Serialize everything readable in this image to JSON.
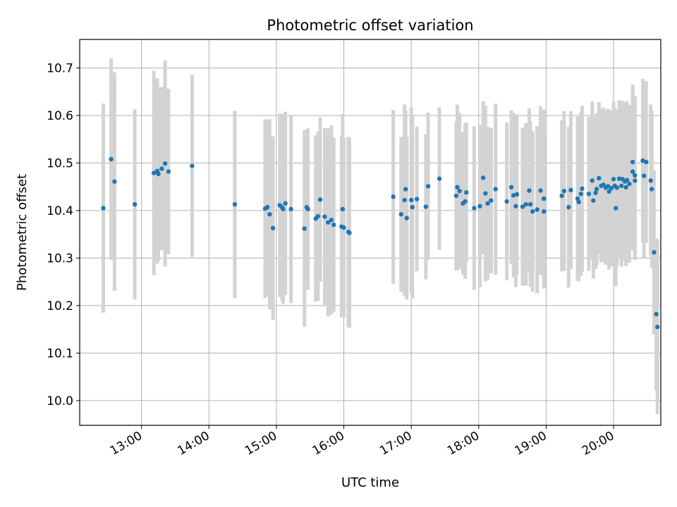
{
  "chart_data": {
    "type": "scatter",
    "title": "Photometric offset variation",
    "xlabel": "UTC time",
    "ylabel": "Photometric offset",
    "x_unit": "UTC hours",
    "xlim": [
      "12:05",
      "20:42"
    ],
    "ylim": [
      9.948,
      10.76
    ],
    "x_ticks": [
      "13:00",
      "14:00",
      "15:00",
      "16:00",
      "17:00",
      "18:00",
      "19:00",
      "20:00"
    ],
    "y_ticks": [
      10.0,
      10.1,
      10.2,
      10.3,
      10.4,
      10.5,
      10.6,
      10.7
    ],
    "grid": true,
    "colors": {
      "points": "#1f77b4",
      "errorbars": "#d3d3d3",
      "grid": "#b0b0b0"
    },
    "series": [
      {
        "points": [
          [
            "12:26",
            10.405,
            0.22
          ],
          [
            "12:33",
            10.508,
            0.212
          ],
          [
            "12:36",
            10.461,
            0.23
          ],
          [
            "12:54",
            10.413,
            0.2
          ],
          [
            "13:11",
            10.479,
            0.215
          ],
          [
            "13:14",
            10.483,
            0.195
          ],
          [
            "13:15",
            10.477,
            0.183
          ],
          [
            "13:18",
            10.488,
            0.172
          ],
          [
            "13:21",
            10.499,
            0.217
          ],
          [
            "13:24",
            10.482,
            0.174
          ],
          [
            "13:45",
            10.494,
            0.192
          ],
          [
            "14:23",
            10.413,
            0.197
          ],
          [
            "14:50",
            10.404,
            0.188
          ],
          [
            "14:52",
            10.407,
            0.185
          ],
          [
            "14:54",
            10.392,
            0.2
          ],
          [
            "14:57",
            10.363,
            0.193
          ],
          [
            "15:03",
            10.411,
            0.193
          ],
          [
            "15:05",
            10.407,
            0.196
          ],
          [
            "15:06",
            10.403,
            0.199
          ],
          [
            "15:08",
            10.415,
            0.193
          ],
          [
            "15:13",
            10.403,
            0.198
          ],
          [
            "15:25",
            10.362,
            0.207
          ],
          [
            "15:27",
            10.407,
            0.163
          ],
          [
            "15:28",
            10.403,
            0.17
          ],
          [
            "15:35",
            10.383,
            0.175
          ],
          [
            "15:37",
            10.388,
            0.178
          ],
          [
            "15:39",
            10.423,
            0.173
          ],
          [
            "15:43",
            10.387,
            0.187
          ],
          [
            "15:46",
            10.375,
            0.198
          ],
          [
            "15:49",
            10.38,
            0.199
          ],
          [
            "15:51",
            10.37,
            0.183
          ],
          [
            "15:58",
            10.366,
            0.191
          ],
          [
            "16:00",
            10.364,
            0.189
          ],
          [
            "15:59",
            10.403,
            0.2
          ],
          [
            "16:04",
            10.355,
            0.2
          ],
          [
            "16:05",
            10.353,
            0.2
          ],
          [
            "16:44",
            10.429,
            0.183
          ],
          [
            "16:51",
            10.392,
            0.163
          ],
          [
            "16:54",
            10.422,
            0.201
          ],
          [
            "16:55",
            10.445,
            0.165
          ],
          [
            "16:56",
            10.384,
            0.171
          ],
          [
            "17:00",
            10.422,
            0.195
          ],
          [
            "17:01",
            10.407,
            0.192
          ],
          [
            "17:05",
            10.424,
            0.152
          ],
          [
            "17:13",
            10.408,
            0.153
          ],
          [
            "17:15",
            10.451,
            0.155
          ],
          [
            "17:25",
            10.467,
            0.15
          ],
          [
            "17:40",
            10.431,
            0.157
          ],
          [
            "17:41",
            10.449,
            0.174
          ],
          [
            "17:43",
            10.441,
            0.164
          ],
          [
            "17:46",
            10.415,
            0.15
          ],
          [
            "17:48",
            10.419,
            0.163
          ],
          [
            "17:49",
            10.438,
            0.147
          ],
          [
            "17:56",
            10.405,
            0.172
          ],
          [
            "18:01",
            10.409,
            0.171
          ],
          [
            "18:04",
            10.469,
            0.161
          ],
          [
            "18:06",
            10.436,
            0.185
          ],
          [
            "18:08",
            10.415,
            0.161
          ],
          [
            "18:11",
            10.421,
            0.153
          ],
          [
            "18:15",
            10.445,
            0.18
          ],
          [
            "18:25",
            10.419,
            0.166
          ],
          [
            "18:29",
            10.449,
            0.162
          ],
          [
            "18:31",
            10.432,
            0.173
          ],
          [
            "18:33",
            10.409,
            0.17
          ],
          [
            "18:34",
            10.434,
            0.168
          ],
          [
            "18:39",
            10.408,
            0.166
          ],
          [
            "18:42",
            10.413,
            0.171
          ],
          [
            "18:46",
            10.413,
            0.174
          ],
          [
            "18:45",
            10.442,
            0.173
          ],
          [
            "18:48",
            10.398,
            0.169
          ],
          [
            "18:52",
            10.402,
            0.176
          ],
          [
            "18:55",
            10.442,
            0.177
          ],
          [
            "18:58",
            10.425,
            0.187
          ],
          [
            "18:58",
            10.398,
            0.162
          ],
          [
            "19:14",
            10.431,
            0.159
          ],
          [
            "19:16",
            10.441,
            0.168
          ],
          [
            "19:20",
            10.407,
            0.169
          ],
          [
            "19:22",
            10.443,
            0.166
          ],
          [
            "19:28",
            10.425,
            0.173
          ],
          [
            "19:29",
            10.418,
            0.167
          ],
          [
            "19:31",
            10.435,
            0.173
          ],
          [
            "19:32",
            10.446,
            0.174
          ],
          [
            "19:38",
            10.435,
            0.162
          ],
          [
            "19:41",
            10.463,
            0.166
          ],
          [
            "19:42",
            10.421,
            0.164
          ],
          [
            "19:44",
            10.437,
            0.16
          ],
          [
            "19:45",
            10.445,
            0.16
          ],
          [
            "19:47",
            10.468,
            0.16
          ],
          [
            "19:49",
            10.452,
            0.161
          ],
          [
            "19:51",
            10.454,
            0.162
          ],
          [
            "19:53",
            10.448,
            0.162
          ],
          [
            "19:55",
            10.451,
            0.163
          ],
          [
            "19:56",
            10.44,
            0.164
          ],
          [
            "19:58",
            10.447,
            0.164
          ],
          [
            "20:00",
            10.466,
            0.163
          ],
          [
            "20:01",
            10.452,
            0.164
          ],
          [
            "20:02",
            10.405,
            0.164
          ],
          [
            "20:03",
            10.448,
            0.164
          ],
          [
            "20:05",
            10.467,
            0.165
          ],
          [
            "20:07",
            10.452,
            0.17
          ],
          [
            "20:08",
            10.466,
            0.165
          ],
          [
            "20:10",
            10.461,
            0.166
          ],
          [
            "20:11",
            10.449,
            0.166
          ],
          [
            "20:12",
            10.464,
            0.166
          ],
          [
            "20:14",
            10.456,
            0.166
          ],
          [
            "20:17",
            10.502,
            0.163
          ],
          [
            "20:17",
            10.482,
            0.166
          ],
          [
            "20:19",
            10.474,
            0.167
          ],
          [
            "20:19",
            10.463,
            0.167
          ],
          [
            "20:26",
            10.505,
            0.172
          ],
          [
            "20:27",
            10.473,
            0.173
          ],
          [
            "20:29",
            10.502,
            0.17
          ],
          [
            "20:33",
            10.463,
            0.16
          ],
          [
            "20:34",
            10.445,
            0.165
          ],
          [
            "20:36",
            10.312,
            0.173
          ],
          [
            "20:38",
            10.182,
            0.16
          ],
          [
            "20:39",
            10.155,
            0.183
          ]
        ]
      }
    ]
  }
}
